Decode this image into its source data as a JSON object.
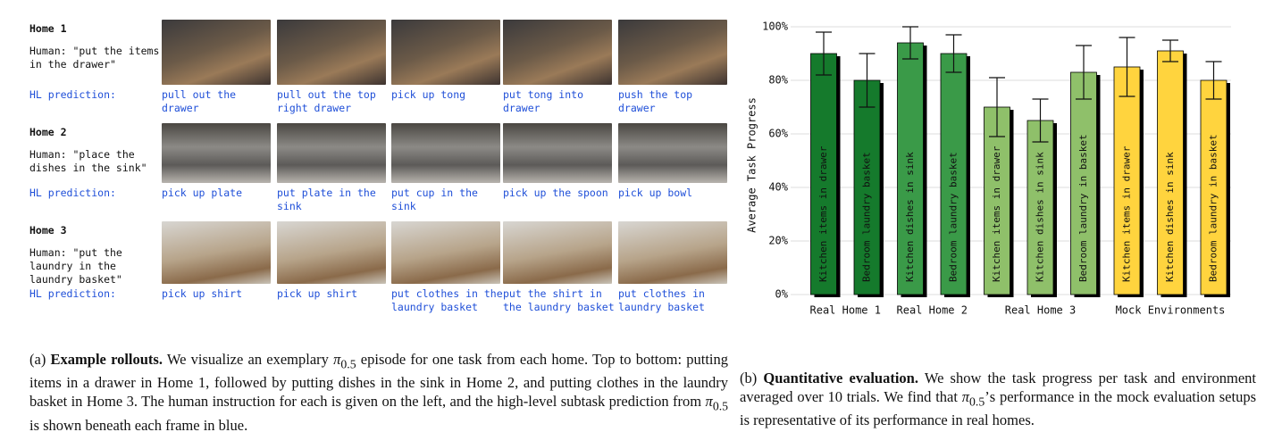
{
  "rollouts": [
    {
      "title": "Home 1",
      "human": "Human: \"put the items in the drawer\"",
      "hl_label": "HL prediction:",
      "predictions": [
        "pull out the drawer",
        "pull out the top right drawer",
        "pick up tong",
        "put tong into drawer",
        "push the top drawer"
      ]
    },
    {
      "title": "Home 2",
      "human": "Human: \"place the dishes in the sink\"",
      "hl_label": "HL prediction:",
      "predictions": [
        "pick up plate",
        "put plate in the sink",
        "put cup in the sink",
        "pick up the spoon",
        "pick up bowl"
      ]
    },
    {
      "title": "Home 3",
      "human": "Human: \"put the laundry in the laundry basket\"",
      "hl_label": "HL prediction:",
      "predictions": [
        "pick up shirt",
        "pick up shirt",
        "put clothes in the laundry basket",
        "put the shirt in the laundry basket",
        "put clothes in laundry basket"
      ]
    }
  ],
  "chart_data": {
    "type": "bar",
    "ylabel": "Average Task Progress",
    "ylim": [
      0,
      100
    ],
    "yticks": [
      {
        "value": 0,
        "label": "0%"
      },
      {
        "value": 20,
        "label": "20%"
      },
      {
        "value": 40,
        "label": "40%"
      },
      {
        "value": 60,
        "label": "60%"
      },
      {
        "value": 80,
        "label": "80%"
      },
      {
        "value": 100,
        "label": "100%"
      }
    ],
    "grid": true,
    "series": [
      {
        "name": "Real Home 1",
        "color": "#157a2c",
        "categories": [
          "Kitchen items in drawer",
          "Bedroom laundry basket"
        ],
        "values": [
          90,
          80
        ],
        "errors": [
          8,
          10
        ]
      },
      {
        "name": "Real Home 2",
        "color": "#3a9a48",
        "categories": [
          "Kitchen dishes in sink",
          "Bedroom laundry basket"
        ],
        "values": [
          94,
          90
        ],
        "errors": [
          6,
          7
        ]
      },
      {
        "name": "Real Home 3",
        "color": "#8fc06a",
        "categories": [
          "Kitchen items in drawer",
          "Kitchen dishes in sink",
          "Bedroom laundry in basket"
        ],
        "values": [
          70,
          65,
          83
        ],
        "errors": [
          11,
          8,
          10
        ]
      },
      {
        "name": "Mock Environments",
        "color": "#ffd43e",
        "categories": [
          "Kitchen items in drawer",
          "Kitchen dishes in sink",
          "Bedroom laundry in basket"
        ],
        "values": [
          85,
          91,
          80
        ],
        "errors": [
          11,
          4,
          7
        ]
      }
    ]
  },
  "captions": {
    "a": {
      "label": "(a)",
      "title": "Example rollouts.",
      "segments": [
        {
          "text": " We visualize an exemplary "
        },
        {
          "math": "π",
          "sub": "0.5"
        },
        {
          "text": " episode for one task from each home. Top to bottom: putting items in a drawer in Home 1, followed by putting dishes in the sink in Home 2, and putting clothes in the laundry basket in Home 3. The human instruction for each is given on the left, and the high-level subtask prediction from "
        },
        {
          "math": "π",
          "sub": "0.5"
        },
        {
          "text": " is shown beneath each frame in blue."
        }
      ]
    },
    "b": {
      "label": "(b)",
      "title": "Quantitative evaluation.",
      "segments": [
        {
          "text": " We show the task progress per task and environment averaged over 10 trials. We find that "
        },
        {
          "math": "π",
          "sub": "0.5"
        },
        {
          "text": "’s performance in the mock evaluation setups is representative of its performance in real homes."
        }
      ]
    }
  }
}
